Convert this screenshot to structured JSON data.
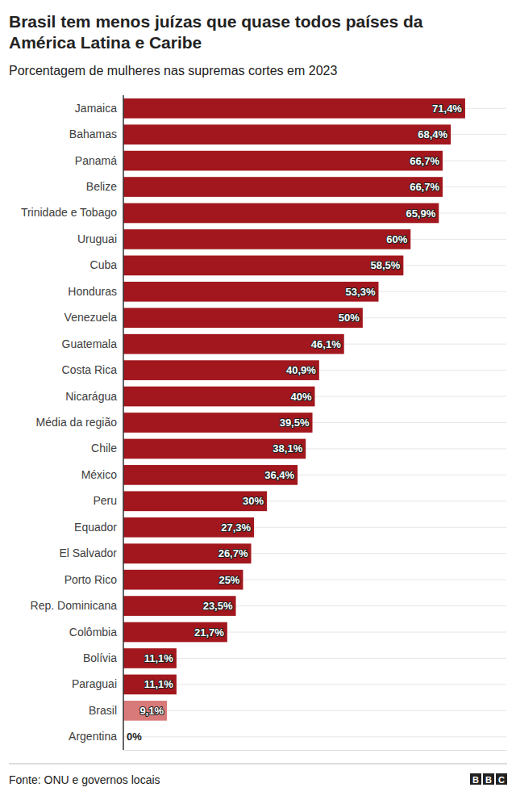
{
  "chart_data": {
    "type": "bar",
    "orientation": "horizontal",
    "title": "Brasil tem menos juízas que quase todos países da América Latina e Caribe",
    "subtitle": "Porcentagem de mulheres nas supremas cortes em 2023",
    "source": "Fonte: ONU e governos locais",
    "credit": "BBC",
    "categories": [
      "Jamaica",
      "Bahamas",
      "Panamá",
      "Belize",
      "Trinidade e Tobago",
      "Uruguai",
      "Cuba",
      "Honduras",
      "Venezuela",
      "Guatemala",
      "Costa Rica",
      "Nicarágua",
      "Média da região",
      "Chile",
      "México",
      "Peru",
      "Equador",
      "El Salvador",
      "Porto Rico",
      "Rep. Dominicana",
      "Colômbia",
      "Bolívia",
      "Paraguai",
      "Brasil",
      "Argentina"
    ],
    "values": [
      71.4,
      68.4,
      66.7,
      66.7,
      65.9,
      60,
      58.5,
      53.3,
      50,
      46.1,
      40.9,
      40,
      39.5,
      38.1,
      36.4,
      30,
      27.3,
      26.7,
      25,
      23.5,
      21.7,
      11.1,
      11.1,
      9.1,
      0
    ],
    "value_labels": [
      "71,4%",
      "68,4%",
      "66,7%",
      "66,7%",
      "65,9%",
      "60%",
      "58,5%",
      "53,3%",
      "50%",
      "46,1%",
      "40,9%",
      "40%",
      "39,5%",
      "38,1%",
      "36,4%",
      "30%",
      "27,3%",
      "26,7%",
      "25%",
      "23,5%",
      "21,7%",
      "11,1%",
      "11,1%",
      "9,1%",
      "0%"
    ],
    "colors": [
      "#a1171d",
      "#a1171d",
      "#a1171d",
      "#a1171d",
      "#a1171d",
      "#a1171d",
      "#a1171d",
      "#a1171d",
      "#a1171d",
      "#a1171d",
      "#a1171d",
      "#a1171d",
      "#a1171d",
      "#a1171d",
      "#a1171d",
      "#a1171d",
      "#a1171d",
      "#a1171d",
      "#a1171d",
      "#a1171d",
      "#a1171d",
      "#a1171d",
      "#a1171d",
      "#d97a7a",
      "#a1171d"
    ],
    "xlim": [
      0,
      80
    ],
    "grid": true,
    "data_labels": true,
    "tick_labels": "y"
  }
}
